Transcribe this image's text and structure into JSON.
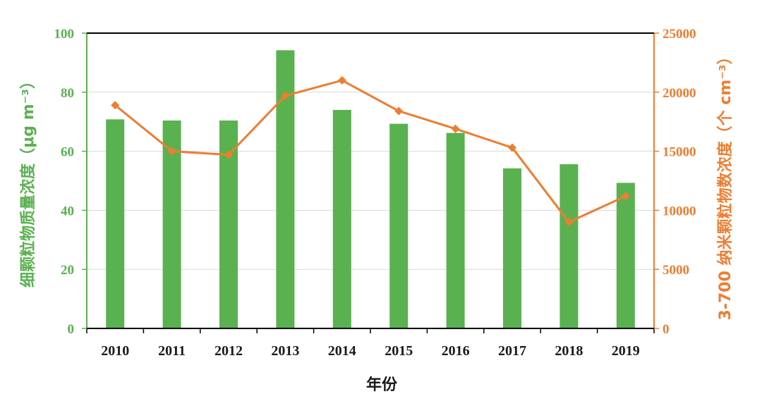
{
  "chart_data": {
    "type": "bar",
    "categories": [
      "2010",
      "2011",
      "2012",
      "2013",
      "2014",
      "2015",
      "2016",
      "2017",
      "2018",
      "2019"
    ],
    "series": [
      {
        "type": "bar",
        "axis": "left",
        "color": "#5ab150",
        "values": [
          70.8,
          70.4,
          70.4,
          94.2,
          74.0,
          69.3,
          66.2,
          54.2,
          55.6,
          49.3
        ]
      },
      {
        "type": "line",
        "axis": "right",
        "color": "#ee7d31",
        "marker": "diamond",
        "values": [
          18900,
          15000,
          14700,
          19700,
          21000,
          18400,
          16900,
          15300,
          9000,
          11200
        ]
      }
    ],
    "xlabel": "年份",
    "ylabel": "细颗粒物质量浓度（μg m⁻³）",
    "y2label": "3-700 纳米颗粒物数浓度（个 cm⁻³）",
    "ylim": [
      0,
      100
    ],
    "y2lim": [
      0,
      25000
    ],
    "yticks": [
      "0",
      "20",
      "40",
      "60",
      "80",
      "100"
    ],
    "y2ticks": [
      "0",
      "5000",
      "10000",
      "15000",
      "20000",
      "25000"
    ],
    "grid": true,
    "colors": {
      "left_axis": "#5ab150",
      "right_axis": "#ee7d31"
    }
  }
}
